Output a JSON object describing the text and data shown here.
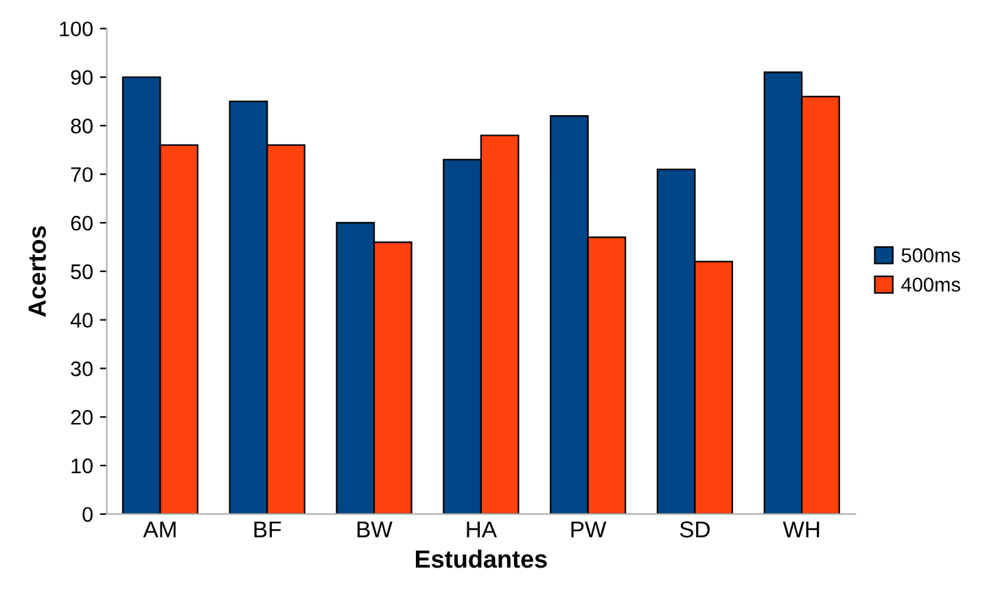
{
  "chart_data": {
    "type": "bar",
    "xlabel": "Estudantes",
    "ylabel": "Acertos",
    "categories": [
      "AM",
      "BF",
      "BW",
      "HA",
      "PW",
      "SD",
      "WH"
    ],
    "series": [
      {
        "name": "500ms",
        "color": "#004586",
        "values": [
          90,
          85,
          60,
          73,
          82,
          71,
          91
        ]
      },
      {
        "name": "400ms",
        "color": "#ff420e",
        "values": [
          76,
          76,
          56,
          78,
          57,
          52,
          86
        ]
      }
    ],
    "ylim": [
      0,
      100
    ],
    "yticks": [
      0,
      10,
      20,
      30,
      40,
      50,
      60,
      70,
      80,
      90,
      100
    ],
    "grid": false,
    "legend": "right"
  }
}
